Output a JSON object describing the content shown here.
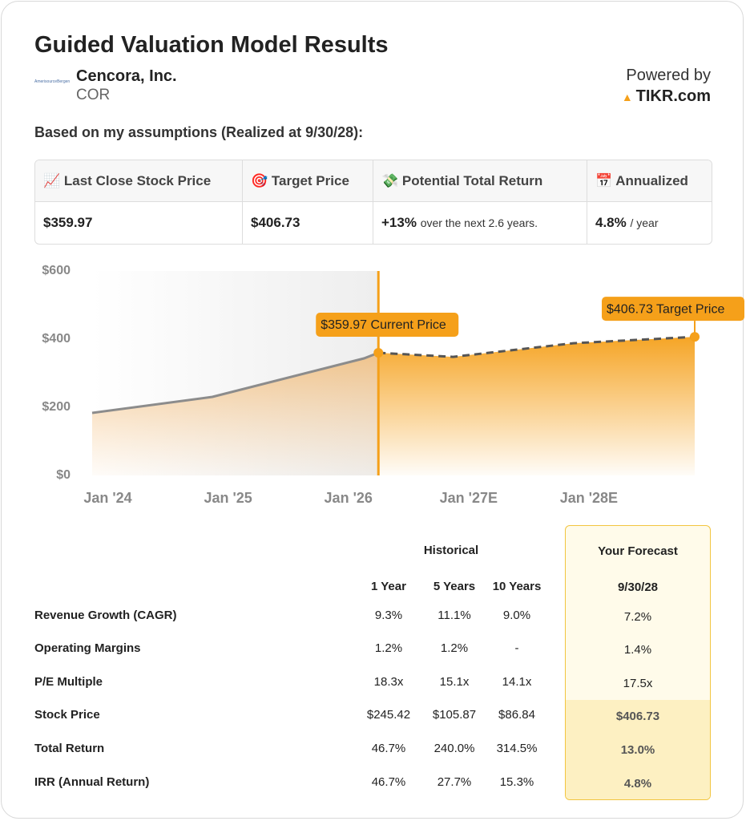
{
  "header": {
    "title": "Guided Valuation Model Results",
    "logo": "AmerisourceBergen",
    "company": "Cencora, Inc.",
    "ticker": "COR",
    "powered": "Powered by",
    "brand": "TIKR.com"
  },
  "assumption": "Based on my assumptions (Realized at 9/30/28):",
  "summary": [
    {
      "header": "📈 Last Close Stock Price",
      "value": "$359.97",
      "note": ""
    },
    {
      "header": "🎯 Target Price",
      "value": "$406.73",
      "note": ""
    },
    {
      "header": "💸 Potential Total Return",
      "value": "+13%",
      "note": "over the next 2.6 years."
    },
    {
      "header": "📅 Annualized",
      "value": "4.8%",
      "note": "/ year"
    }
  ],
  "chart_data": {
    "type": "area",
    "x": [
      2023.87,
      2024.87,
      2026.13,
      2026.25,
      2026.87,
      2027.87,
      2028.88
    ],
    "series": [
      {
        "color": "#8c8c8c",
        "values": [
          183.5,
          230.6,
          343.5,
          359.97,
          null,
          null,
          null
        ]
      },
      {
        "color": "#555555",
        "values": [
          null,
          null,
          null,
          359.97,
          348,
          388,
          406.73
        ]
      }
    ],
    "fill_color": "#f5a01a",
    "xlim": [
      2023.87,
      2028.88
    ],
    "xticks": [
      {
        "value": 2024,
        "label": "Jan '24"
      },
      {
        "value": 2025,
        "label": "Jan '25"
      },
      {
        "value": 2026,
        "label": "Jan '26"
      },
      {
        "value": 2027,
        "label": "Jan '27E"
      },
      {
        "value": 2028,
        "label": "Jan '28E"
      }
    ],
    "ylim": [
      0,
      600
    ],
    "yticks": [
      {
        "value": 0,
        "label": "$0"
      },
      {
        "value": 200,
        "label": "$200"
      },
      {
        "value": 400,
        "label": "$400"
      },
      {
        "value": 600,
        "label": "$600"
      }
    ],
    "current_x": 2026.25,
    "annotations": [
      {
        "text": "$359.97 Current Price",
        "x": 2026.25,
        "y": 359.97
      },
      {
        "text": "$406.73 Target Price",
        "x": 2028.88,
        "y": 406.73
      }
    ]
  },
  "table": {
    "group_historical": "Historical",
    "group_forecast": "Your Forecast",
    "columns": [
      "1 Year",
      "5 Years",
      "10 Years",
      "9/30/28"
    ],
    "rows": [
      [
        "Revenue Growth (CAGR)",
        "9.3%",
        "11.1%",
        "9.0%",
        "7.2%"
      ],
      [
        "Operating Margins",
        "1.2%",
        "1.2%",
        "-",
        "1.4%"
      ],
      [
        "P/E Multiple",
        "18.3x",
        "15.1x",
        "14.1x",
        "17.5x"
      ],
      [
        "Stock Price",
        "$245.42",
        "$105.87",
        "$86.84",
        "$406.73"
      ],
      [
        "Total Return",
        "46.7%",
        "240.0%",
        "314.5%",
        "13.0%"
      ],
      [
        "IRR (Annual Return)",
        "46.7%",
        "27.7%",
        "15.3%",
        "4.8%"
      ]
    ]
  }
}
